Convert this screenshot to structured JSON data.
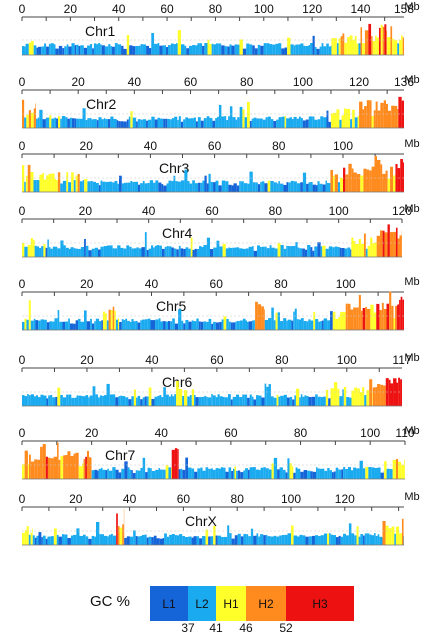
{
  "figure": {
    "unit_label": "Mb",
    "legend": {
      "title": "GC %",
      "classes": [
        {
          "name": "L1",
          "color": "#1565d8"
        },
        {
          "name": "L2",
          "color": "#19aaf0"
        },
        {
          "name": "H1",
          "color": "#ffff2a"
        },
        {
          "name": "H2",
          "color": "#ff8a1e"
        },
        {
          "name": "H3",
          "color": "#ee1111"
        }
      ],
      "boundaries": [
        "37",
        "41",
        "46",
        "52"
      ]
    }
  },
  "chart_data": [
    {
      "type": "bar",
      "title": "Chr1",
      "xlabel": "Mb",
      "length_mb": 158,
      "ticks": [
        0,
        20,
        40,
        60,
        80,
        100,
        120,
        140,
        158
      ],
      "regions": [
        {
          "start": 0,
          "end": 6,
          "class": "H1"
        },
        {
          "start": 6,
          "end": 128,
          "class": "L2"
        },
        {
          "start": 128,
          "end": 140,
          "class": "H1"
        },
        {
          "start": 140,
          "end": 151,
          "class": "H2"
        },
        {
          "start": 151,
          "end": 158,
          "class": "H1"
        }
      ]
    },
    {
      "type": "bar",
      "title": "Chr2",
      "xlabel": "Mb",
      "length_mb": 136,
      "ticks": [
        0,
        20,
        40,
        60,
        80,
        100,
        120,
        136
      ],
      "regions": [
        {
          "start": 0,
          "end": 5,
          "class": "H1"
        },
        {
          "start": 5,
          "end": 110,
          "class": "L2"
        },
        {
          "start": 110,
          "end": 120,
          "class": "H1"
        },
        {
          "start": 120,
          "end": 134,
          "class": "H2"
        },
        {
          "start": 134,
          "end": 136,
          "class": "H3"
        }
      ]
    },
    {
      "type": "bar",
      "title": "Chr3",
      "xlabel": "Mb",
      "length_mb": 119,
      "ticks": [
        0,
        20,
        40,
        60,
        80,
        100
      ],
      "regions": [
        {
          "start": 0,
          "end": 18,
          "class": "H1"
        },
        {
          "start": 18,
          "end": 95,
          "class": "L2"
        },
        {
          "start": 95,
          "end": 100,
          "class": "H1"
        },
        {
          "start": 100,
          "end": 117,
          "class": "H2"
        },
        {
          "start": 117,
          "end": 119,
          "class": "H3"
        }
      ]
    },
    {
      "type": "bar",
      "title": "Chr4",
      "xlabel": "Mb",
      "length_mb": 120,
      "ticks": [
        0,
        20,
        40,
        60,
        80,
        100,
        120
      ],
      "regions": [
        {
          "start": 0,
          "end": 4,
          "class": "H1"
        },
        {
          "start": 4,
          "end": 104,
          "class": "L2"
        },
        {
          "start": 104,
          "end": 112,
          "class": "H1"
        },
        {
          "start": 112,
          "end": 120,
          "class": "H2"
        }
      ]
    },
    {
      "type": "bar",
      "title": "Chr5",
      "xlabel": "Mb",
      "length_mb": 118,
      "ticks": [
        0,
        20,
        40,
        60,
        80,
        100
      ],
      "regions": [
        {
          "start": 0,
          "end": 25,
          "class": "L2"
        },
        {
          "start": 25,
          "end": 30,
          "class": "H1"
        },
        {
          "start": 30,
          "end": 72,
          "class": "L2"
        },
        {
          "start": 72,
          "end": 75,
          "class": "H2"
        },
        {
          "start": 75,
          "end": 96,
          "class": "L2"
        },
        {
          "start": 96,
          "end": 100,
          "class": "H1"
        },
        {
          "start": 100,
          "end": 116,
          "class": "H2"
        },
        {
          "start": 116,
          "end": 118,
          "class": "H3"
        }
      ]
    },
    {
      "type": "bar",
      "title": "Chr6",
      "xlabel": "Mb",
      "length_mb": 117,
      "ticks": [
        0,
        20,
        40,
        60,
        80,
        100,
        117
      ],
      "regions": [
        {
          "start": 0,
          "end": 95,
          "class": "L2"
        },
        {
          "start": 95,
          "end": 108,
          "class": "H1"
        },
        {
          "start": 108,
          "end": 112,
          "class": "H2"
        },
        {
          "start": 112,
          "end": 117,
          "class": "H3"
        }
      ]
    },
    {
      "type": "bar",
      "title": "Chr7",
      "xlabel": "Mb",
      "length_mb": 110,
      "ticks": [
        0,
        20,
        40,
        60,
        80,
        100,
        110
      ],
      "regions": [
        {
          "start": 0,
          "end": 2,
          "class": "H1"
        },
        {
          "start": 2,
          "end": 20,
          "class": "H2"
        },
        {
          "start": 20,
          "end": 43,
          "class": "L2"
        },
        {
          "start": 43,
          "end": 45,
          "class": "H3"
        },
        {
          "start": 45,
          "end": 104,
          "class": "L2"
        },
        {
          "start": 104,
          "end": 110,
          "class": "H1"
        }
      ]
    },
    {
      "type": "bar",
      "title": "ChrX",
      "xlabel": "Mb",
      "length_mb": 142,
      "ticks": [
        0,
        20,
        40,
        60,
        80,
        100,
        120
      ],
      "regions": [
        {
          "start": 0,
          "end": 4,
          "class": "H1"
        },
        {
          "start": 4,
          "end": 35,
          "class": "L2"
        },
        {
          "start": 35,
          "end": 38,
          "class": "H2"
        },
        {
          "start": 38,
          "end": 134,
          "class": "L2"
        },
        {
          "start": 134,
          "end": 142,
          "class": "H1"
        }
      ]
    }
  ]
}
